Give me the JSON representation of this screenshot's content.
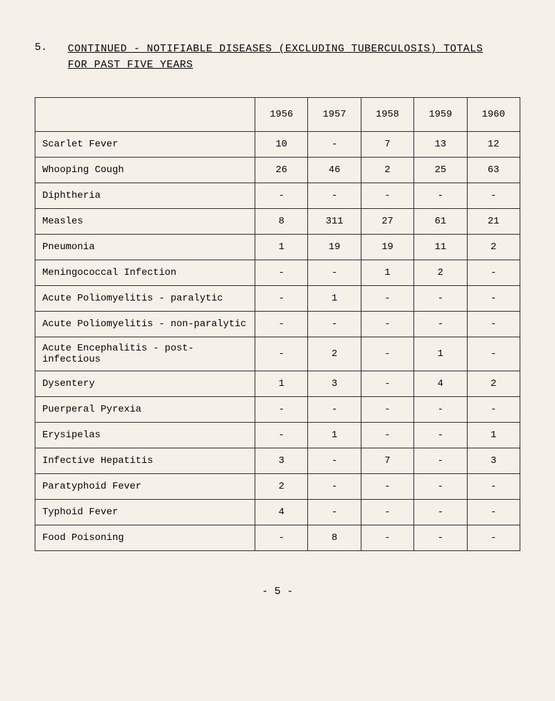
{
  "section_number": "5.",
  "title_line1": "CONTINUED - NOTIFIABLE DISEASES (EXCLUDING TUBERCULOSIS) TOTALS",
  "title_line2": "FOR PAST FIVE YEARS",
  "column_headers": [
    "1956",
    "1957",
    "1958",
    "1959",
    "1960"
  ],
  "rows": [
    {
      "label": "Scarlet Fever",
      "values": [
        "10",
        "-",
        "7",
        "13",
        "12"
      ]
    },
    {
      "label": "Whooping Cough",
      "values": [
        "26",
        "46",
        "2",
        "25",
        "63"
      ]
    },
    {
      "label": "Diphtheria",
      "values": [
        "-",
        "-",
        "-",
        "-",
        "-"
      ]
    },
    {
      "label": "Measles",
      "values": [
        "8",
        "311",
        "27",
        "61",
        "21"
      ]
    },
    {
      "label": "Pneumonia",
      "values": [
        "1",
        "19",
        "19",
        "11",
        "2"
      ]
    },
    {
      "label": "Meningococcal Infection",
      "values": [
        "-",
        "-",
        "1",
        "2",
        "-"
      ]
    },
    {
      "label": "Acute Poliomyelitis - paralytic",
      "values": [
        "-",
        "1",
        "-",
        "-",
        "-"
      ]
    },
    {
      "label": "Acute Poliomyelitis - non-paralytic",
      "values": [
        "-",
        "-",
        "-",
        "-",
        "-"
      ]
    },
    {
      "label": "Acute Encephalitis - post-infectious",
      "values": [
        "-",
        "2",
        "-",
        "1",
        "-"
      ]
    },
    {
      "label": "Dysentery",
      "values": [
        "1",
        "3",
        "-",
        "4",
        "2"
      ]
    },
    {
      "label": "Puerperal Pyrexia",
      "values": [
        "-",
        "-",
        "-",
        "-",
        "-"
      ]
    },
    {
      "label": "Erysipelas",
      "values": [
        "-",
        "1",
        "-",
        "-",
        "1"
      ]
    },
    {
      "label": "Infective Hepatitis",
      "values": [
        "3",
        "-",
        "7",
        "-",
        "3"
      ]
    },
    {
      "label": "Paratyphoid Fever",
      "values": [
        "2",
        "-",
        "-",
        "-",
        "-"
      ]
    },
    {
      "label": "Typhoid Fever",
      "values": [
        "4",
        "-",
        "-",
        "-",
        "-"
      ]
    },
    {
      "label": "Food Poisoning",
      "values": [
        "-",
        "8",
        "-",
        "-",
        "-"
      ]
    }
  ],
  "page_number": "- 5 -",
  "styling": {
    "background_color": "#f5f1e8",
    "border_color": "#2a2a2a",
    "font_family": "Courier New",
    "title_fontsize": 15,
    "cell_fontsize": 14,
    "column_widths": {
      "label": 300,
      "data": 70
    }
  }
}
